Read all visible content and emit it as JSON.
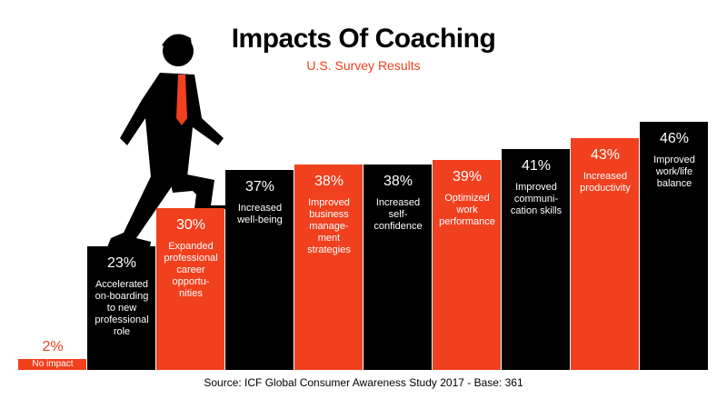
{
  "chart_data": {
    "type": "bar",
    "title": "Impacts Of Coaching",
    "subtitle": "U.S. Survey Results",
    "source": "Source: ICF Global Consumer Awareness Study 2017 - Base: 361",
    "categories": [
      "No impact",
      "Accelerated\non-boarding\nto new\nprofessional\nrole",
      "Expanded\nprofessional\ncareer\nopportu-\nnities",
      "Increased\nwell-being",
      "Improved\nbusiness\nmanage-\nment\nstrategies",
      "Increased\nself-\nconfidence",
      "Optimized\nwork\nperformance",
      "Improved\ncommuni-\ncation skills",
      "Increased\nproductivity",
      "Improved\nwork/life\nbalance"
    ],
    "values": [
      2,
      23,
      30,
      37,
      38,
      38,
      39,
      41,
      43,
      46
    ],
    "value_labels": [
      "2%",
      "23%",
      "30%",
      "37%",
      "38%",
      "38%",
      "39%",
      "41%",
      "43%",
      "46%"
    ],
    "colors": [
      "#f0401e",
      "#000000",
      "#f0401e",
      "#000000",
      "#f0401e",
      "#000000",
      "#f0401e",
      "#000000",
      "#f0401e",
      "#000000"
    ]
  }
}
